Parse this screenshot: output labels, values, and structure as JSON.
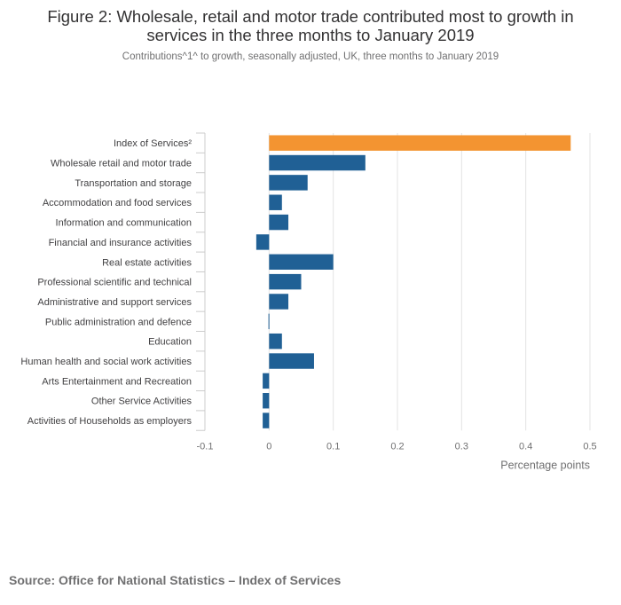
{
  "title": "Figure 2: Wholesale, retail and motor trade contributed most to growth in services in the three months to January 2019",
  "subtitle": "Contributions^1^ to growth, seasonally adjusted, UK, three months to January 2019",
  "source": "Source: Office for National Statistics – Index of Services",
  "colors": {
    "highlight": "#f39431",
    "bar": "#206095",
    "grid": "#e3e3e3",
    "text": "#707071"
  },
  "chart_data": {
    "type": "bar",
    "orientation": "horizontal",
    "title": "Figure 2: Wholesale, retail and motor trade contributed most to growth in services in the three months to January 2019",
    "xlabel": "Percentage points",
    "ylabel": "",
    "xlim": [
      -0.1,
      0.5
    ],
    "xticks": [
      -0.1,
      0,
      0.1,
      0.2,
      0.3,
      0.4,
      0.5
    ],
    "xtick_labels": [
      "-0.1",
      "0",
      "0.1",
      "0.2",
      "0.3",
      "0.4",
      "0.5"
    ],
    "grid": true,
    "categories": [
      "Index of Services²",
      "Wholesale retail and motor trade",
      "Transportation and storage",
      "Accommodation and food services",
      "Information and communication",
      "Financial and insurance activities",
      "Real estate activities",
      "Professional scientific and technical",
      "Administrative and support services",
      "Public administration and defence",
      "Education",
      "Human health and social work activities",
      "Arts Entertainment and Recreation",
      "Other Service Activities",
      "Activities of Households as employers"
    ],
    "values": [
      0.47,
      0.15,
      0.06,
      0.02,
      0.03,
      -0.02,
      0.1,
      0.05,
      0.03,
      -0.001,
      0.02,
      0.07,
      -0.01,
      -0.01,
      -0.01
    ],
    "highlight_index": 0
  }
}
